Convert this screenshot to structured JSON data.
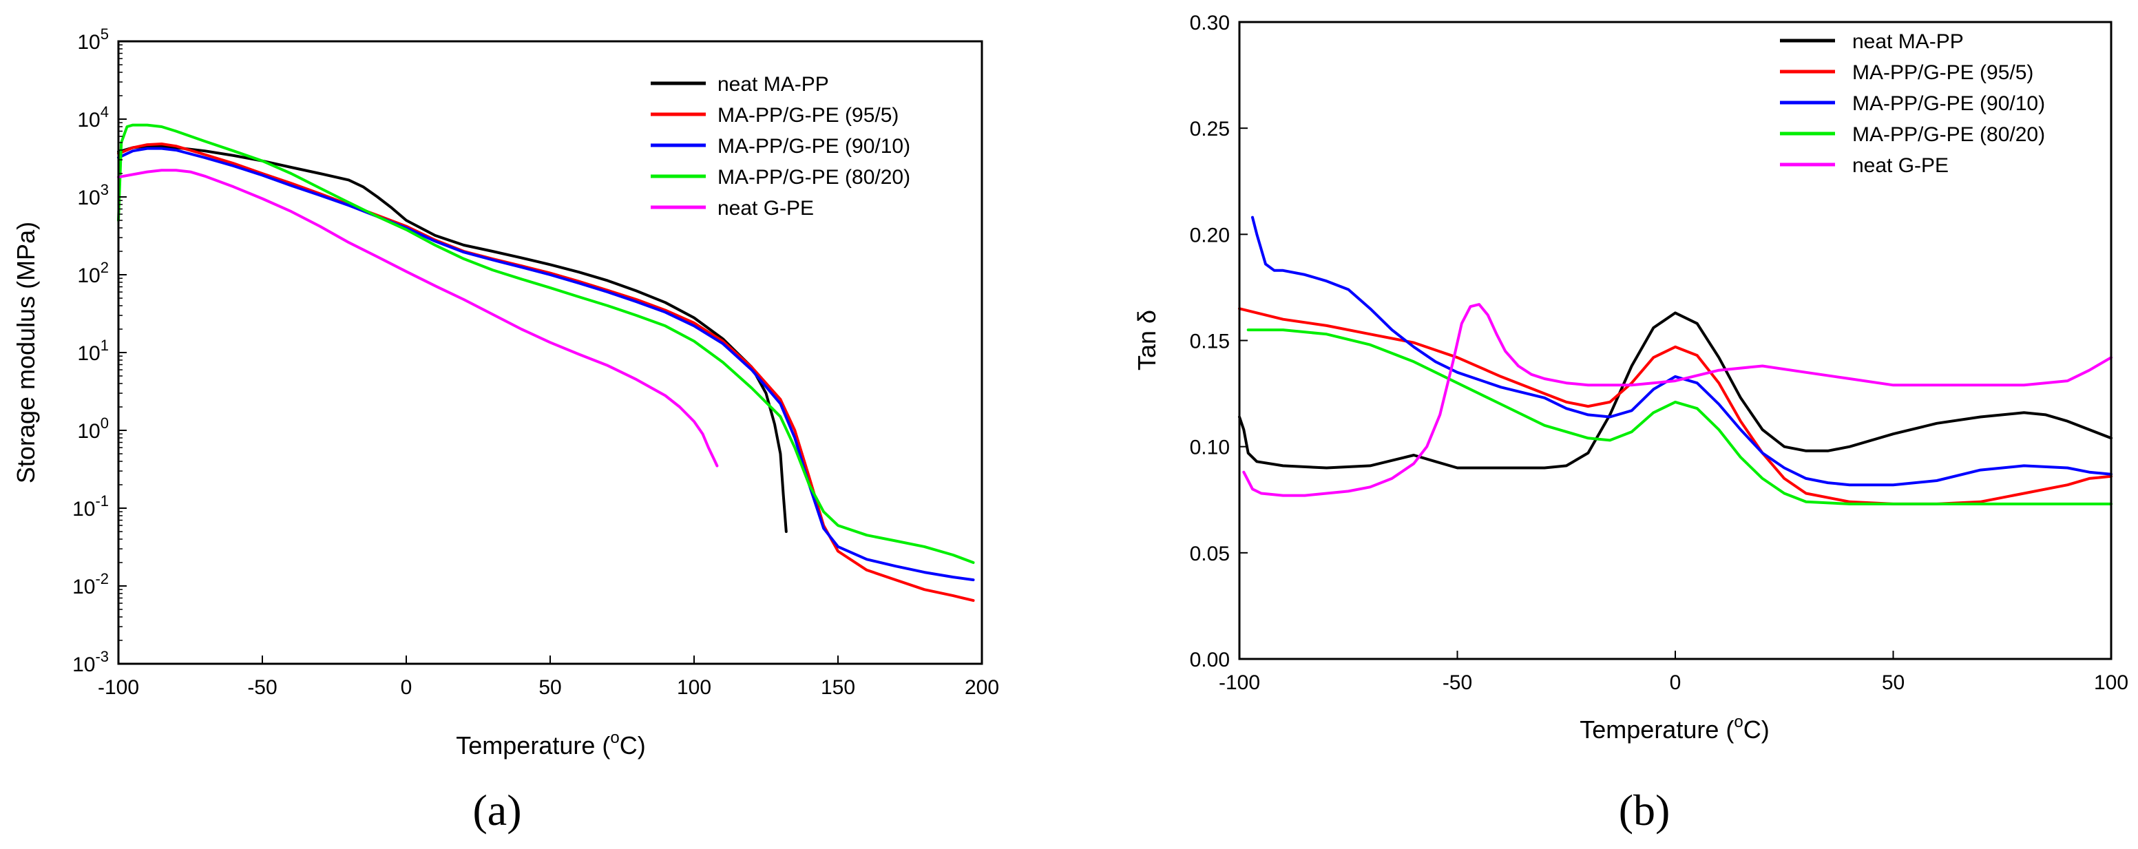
{
  "figure": {
    "panel_a_label": "(a)",
    "panel_b_label": "(b)"
  },
  "chart_data": [
    {
      "type": "line",
      "panel": "a",
      "xlabel_main": "Temperature (",
      "xlabel_sup": "o",
      "xlabel_end": "C)",
      "ylabel": "Storage modulus (MPa)",
      "yscale": "log",
      "xlim": [
        -100,
        200
      ],
      "ylim": [
        0.001,
        100000
      ],
      "x_ticks": [
        -100,
        -50,
        0,
        50,
        100,
        150,
        200
      ],
      "x_tick_labels": [
        "-100",
        "-50",
        "0",
        "50",
        "100",
        "150",
        "200"
      ],
      "y_ticks": [
        0.001,
        0.01,
        0.1,
        1,
        10,
        100,
        1000,
        10000,
        100000
      ],
      "y_tick_exponents": [
        "-3",
        "-2",
        "-1",
        "0",
        "1",
        "2",
        "3",
        "4",
        "5"
      ],
      "y_tick_base": "10",
      "legend_position": "top-right",
      "series": [
        {
          "name": "neat MA-PP",
          "color": "#000000",
          "x": [
            -100,
            -95,
            -90,
            -85,
            -80,
            -70,
            -60,
            -50,
            -40,
            -30,
            -20,
            -15,
            -10,
            -5,
            0,
            10,
            20,
            30,
            40,
            50,
            60,
            70,
            80,
            90,
            100,
            110,
            120,
            125,
            128,
            130,
            131,
            132
          ],
          "y": [
            3800,
            4300,
            4500,
            4450,
            4300,
            3900,
            3400,
            2900,
            2400,
            2000,
            1650,
            1350,
            1000,
            720,
            500,
            320,
            240,
            200,
            165,
            135,
            108,
            84,
            62,
            44,
            28,
            15,
            6.5,
            3.0,
            1.2,
            0.5,
            0.15,
            0.05
          ]
        },
        {
          "name": "MA-PP/G-PE (95/5)",
          "color": "#ff0000",
          "x": [
            -100,
            -95,
            -90,
            -85,
            -80,
            -70,
            -60,
            -50,
            -40,
            -30,
            -20,
            -10,
            0,
            10,
            20,
            30,
            40,
            50,
            60,
            70,
            80,
            90,
            100,
            110,
            120,
            130,
            135,
            140,
            145,
            150,
            160,
            170,
            180,
            190,
            197
          ],
          "y": [
            3600,
            4300,
            4700,
            4800,
            4500,
            3500,
            2700,
            2000,
            1500,
            1100,
            800,
            580,
            420,
            280,
            200,
            160,
            130,
            105,
            82,
            63,
            48,
            35,
            24,
            14,
            6.5,
            2.5,
            1.0,
            0.25,
            0.06,
            0.028,
            0.016,
            0.012,
            0.009,
            0.0075,
            0.0065
          ]
        },
        {
          "name": "MA-PP/G-PE (90/10)",
          "color": "#0000ff",
          "x": [
            -100,
            -95,
            -90,
            -85,
            -80,
            -70,
            -60,
            -50,
            -40,
            -30,
            -20,
            -10,
            0,
            10,
            20,
            30,
            40,
            50,
            60,
            70,
            80,
            90,
            100,
            110,
            120,
            130,
            135,
            140,
            145,
            150,
            160,
            170,
            180,
            190,
            197
          ],
          "y": [
            3200,
            3900,
            4200,
            4200,
            4000,
            3200,
            2500,
            1900,
            1400,
            1050,
            780,
            560,
            400,
            270,
            195,
            155,
            125,
            100,
            78,
            60,
            45,
            33,
            22,
            13,
            6.0,
            2.2,
            0.8,
            0.2,
            0.055,
            0.032,
            0.022,
            0.018,
            0.015,
            0.013,
            0.012
          ]
        },
        {
          "name": "MA-PP/G-PE (80/20)",
          "color": "#00ee00",
          "x": [
            -100,
            -99,
            -97,
            -95,
            -90,
            -85,
            -80,
            -70,
            -60,
            -50,
            -40,
            -30,
            -20,
            -10,
            0,
            10,
            20,
            30,
            40,
            50,
            60,
            70,
            80,
            90,
            100,
            110,
            120,
            130,
            135,
            140,
            145,
            150,
            160,
            170,
            180,
            190,
            197
          ],
          "y": [
            500,
            5000,
            8000,
            8400,
            8400,
            8000,
            7000,
            5200,
            3900,
            2900,
            2000,
            1300,
            850,
            560,
            380,
            240,
            160,
            115,
            88,
            68,
            52,
            40,
            30,
            22,
            14,
            7.5,
            3.5,
            1.5,
            0.6,
            0.2,
            0.09,
            0.06,
            0.045,
            0.038,
            0.032,
            0.025,
            0.02
          ]
        },
        {
          "name": "neat G-PE",
          "color": "#ff00ff",
          "x": [
            -100,
            -90,
            -85,
            -80,
            -75,
            -70,
            -60,
            -50,
            -40,
            -30,
            -20,
            -10,
            0,
            10,
            20,
            30,
            40,
            50,
            60,
            70,
            80,
            90,
            95,
            100,
            103,
            105,
            107,
            108
          ],
          "y": [
            1800,
            2100,
            2200,
            2200,
            2100,
            1850,
            1350,
            950,
            650,
            420,
            260,
            170,
            110,
            72,
            48,
            31,
            20,
            13.5,
            9.5,
            6.8,
            4.5,
            2.8,
            2.0,
            1.3,
            0.9,
            0.6,
            0.42,
            0.35
          ]
        }
      ]
    },
    {
      "type": "line",
      "panel": "b",
      "xlabel_main": "Temperature (",
      "xlabel_sup": "o",
      "xlabel_end": "C)",
      "ylabel": "Tan δ",
      "yscale": "linear",
      "xlim": [
        -100,
        100
      ],
      "ylim": [
        0,
        0.3
      ],
      "x_ticks": [
        -100,
        -50,
        0,
        50,
        100
      ],
      "x_tick_labels": [
        "-100",
        "-50",
        "0",
        "50",
        "100"
      ],
      "y_ticks": [
        0,
        0.05,
        0.1,
        0.15,
        0.2,
        0.25,
        0.3
      ],
      "y_tick_labels": [
        "0.00",
        "0.05",
        "0.10",
        "0.15",
        "0.20",
        "0.25",
        "0.30"
      ],
      "legend_position": "top-right",
      "series": [
        {
          "name": "neat MA-PP",
          "color": "#000000",
          "x": [
            -100,
            -99,
            -98,
            -96,
            -90,
            -80,
            -70,
            -60,
            -55,
            -50,
            -40,
            -30,
            -25,
            -20,
            -15,
            -10,
            -5,
            0,
            5,
            10,
            15,
            20,
            25,
            30,
            35,
            40,
            50,
            60,
            70,
            80,
            85,
            90,
            100
          ],
          "y": [
            0.114,
            0.108,
            0.097,
            0.093,
            0.091,
            0.09,
            0.091,
            0.096,
            0.093,
            0.09,
            0.09,
            0.09,
            0.091,
            0.097,
            0.115,
            0.138,
            0.156,
            0.163,
            0.158,
            0.142,
            0.123,
            0.108,
            0.1,
            0.098,
            0.098,
            0.1,
            0.106,
            0.111,
            0.114,
            0.116,
            0.115,
            0.112,
            0.104
          ]
        },
        {
          "name": "MA-PP/G-PE (95/5)",
          "color": "#ff0000",
          "x": [
            -100,
            -90,
            -80,
            -70,
            -60,
            -50,
            -40,
            -30,
            -25,
            -20,
            -15,
            -10,
            -5,
            0,
            5,
            10,
            15,
            20,
            25,
            30,
            40,
            50,
            60,
            70,
            80,
            90,
            95,
            100
          ],
          "y": [
            0.165,
            0.16,
            0.157,
            0.153,
            0.149,
            0.142,
            0.133,
            0.125,
            0.121,
            0.119,
            0.121,
            0.13,
            0.142,
            0.147,
            0.143,
            0.13,
            0.112,
            0.097,
            0.085,
            0.078,
            0.074,
            0.073,
            0.073,
            0.074,
            0.078,
            0.082,
            0.085,
            0.086
          ]
        },
        {
          "name": "MA-PP/G-PE (90/10)",
          "color": "#0000ff",
          "x": [
            -97,
            -96,
            -94,
            -92,
            -90,
            -85,
            -80,
            -75,
            -70,
            -65,
            -60,
            -55,
            -50,
            -40,
            -30,
            -25,
            -20,
            -15,
            -10,
            -5,
            0,
            5,
            10,
            15,
            20,
            25,
            30,
            35,
            40,
            50,
            60,
            70,
            80,
            90,
            95,
            100
          ],
          "y": [
            0.208,
            0.2,
            0.186,
            0.183,
            0.183,
            0.181,
            0.178,
            0.174,
            0.165,
            0.155,
            0.147,
            0.14,
            0.135,
            0.128,
            0.123,
            0.118,
            0.115,
            0.114,
            0.117,
            0.127,
            0.133,
            0.13,
            0.12,
            0.108,
            0.097,
            0.09,
            0.085,
            0.083,
            0.082,
            0.082,
            0.084,
            0.089,
            0.091,
            0.09,
            0.088,
            0.087
          ]
        },
        {
          "name": "MA-PP/G-PE (80/20)",
          "color": "#00ee00",
          "x": [
            -98,
            -90,
            -80,
            -70,
            -60,
            -50,
            -40,
            -30,
            -20,
            -15,
            -10,
            -5,
            0,
            5,
            10,
            15,
            20,
            25,
            30,
            40,
            50,
            60,
            70,
            80,
            90,
            100
          ],
          "y": [
            0.155,
            0.155,
            0.153,
            0.148,
            0.14,
            0.13,
            0.12,
            0.11,
            0.104,
            0.103,
            0.107,
            0.116,
            0.121,
            0.118,
            0.108,
            0.095,
            0.085,
            0.078,
            0.074,
            0.073,
            0.073,
            0.073,
            0.073,
            0.073,
            0.073,
            0.073
          ]
        },
        {
          "name": "neat G-PE",
          "color": "#ff00ff",
          "x": [
            -99,
            -97,
            -95,
            -90,
            -85,
            -80,
            -75,
            -70,
            -65,
            -60,
            -57,
            -54,
            -51,
            -49,
            -47,
            -45,
            -43,
            -41,
            -39,
            -36,
            -33,
            -30,
            -25,
            -20,
            -10,
            0,
            10,
            20,
            30,
            40,
            50,
            60,
            70,
            80,
            90,
            95,
            100
          ],
          "y": [
            0.088,
            0.08,
            0.078,
            0.077,
            0.077,
            0.078,
            0.079,
            0.081,
            0.085,
            0.092,
            0.1,
            0.115,
            0.14,
            0.158,
            0.166,
            0.167,
            0.162,
            0.153,
            0.145,
            0.138,
            0.134,
            0.132,
            0.13,
            0.129,
            0.129,
            0.131,
            0.136,
            0.138,
            0.135,
            0.132,
            0.129,
            0.129,
            0.129,
            0.129,
            0.131,
            0.136,
            0.142
          ]
        }
      ]
    }
  ]
}
